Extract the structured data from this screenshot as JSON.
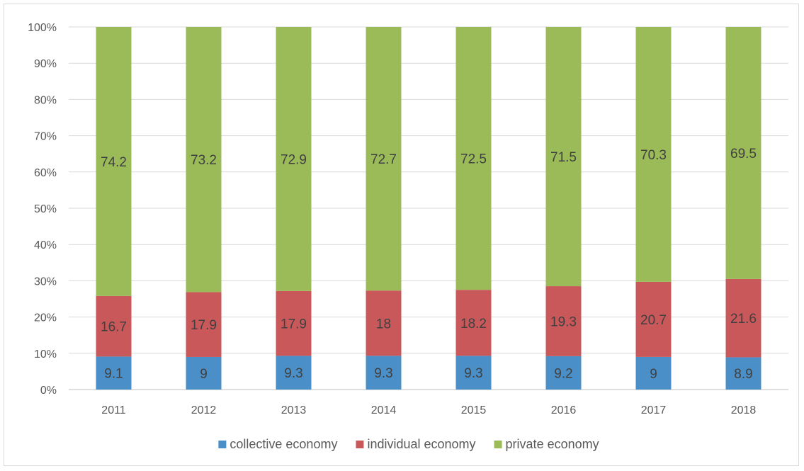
{
  "chart_data": {
    "type": "bar",
    "stacked": true,
    "percent_stacked": true,
    "categories": [
      "2011",
      "2012",
      "2013",
      "2014",
      "2015",
      "2016",
      "2017",
      "2018"
    ],
    "series": [
      {
        "name": "collective economy",
        "color": "#4a8fc8",
        "label_color": "#bcd6ee",
        "values": [
          9.1,
          9,
          9.3,
          9.3,
          9.3,
          9.2,
          9,
          8.9
        ],
        "labels": [
          "9.1",
          "9",
          "9.3",
          "9.3",
          "9.3",
          "9.2",
          "9",
          "8.9"
        ]
      },
      {
        "name": "individual economy",
        "color": "#c9585a",
        "label_color": "#5b3030",
        "values": [
          16.7,
          17.9,
          17.9,
          18,
          18.2,
          19.3,
          20.7,
          21.6
        ],
        "labels": [
          "16.7",
          "17.9",
          "17.9",
          "18",
          "18.2",
          "19.3",
          "20.7",
          "21.6"
        ]
      },
      {
        "name": "private economy",
        "color": "#9bbb59",
        "label_color": "#3f4a2a",
        "values": [
          74.2,
          73.2,
          72.9,
          72.7,
          72.5,
          71.5,
          70.3,
          69.5
        ],
        "labels": [
          "74.2",
          "73.2",
          "72.9",
          "72.7",
          "72.5",
          "71.5",
          "70.3",
          "69.5"
        ]
      }
    ],
    "title": "",
    "xlabel": "",
    "ylabel": "",
    "ylim": [
      0,
      100
    ],
    "y_ticks": [
      "0%",
      "10%",
      "20%",
      "30%",
      "40%",
      "50%",
      "60%",
      "70%",
      "80%",
      "90%",
      "100%"
    ],
    "grid": true,
    "legend_position": "bottom"
  }
}
